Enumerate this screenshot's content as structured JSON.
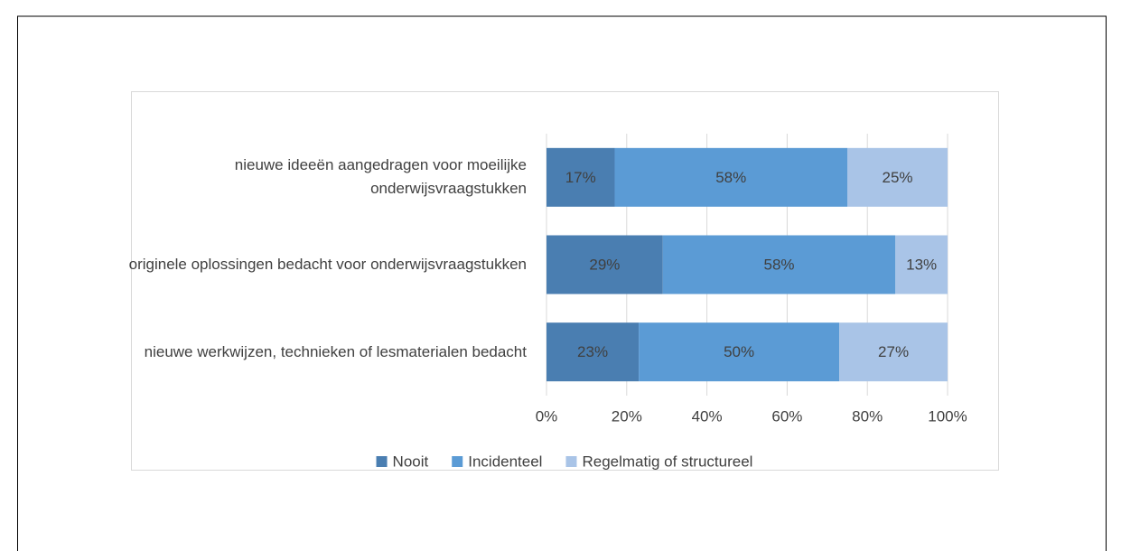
{
  "chart_data": {
    "type": "stacked_barh",
    "categories": [
      "nieuwe ideeën aangedragen voor moeilijke onderwijsvraagstukken",
      "originele oplossingen bedacht voor onderwijsvraagstukken",
      "nieuwe werkwijzen, technieken of lesmaterialen bedacht"
    ],
    "series": [
      {
        "name": "Nooit",
        "color": "#4a7eb1",
        "values": [
          17,
          29,
          23
        ],
        "value_labels": [
          "17%",
          "29%",
          "23%"
        ]
      },
      {
        "name": "Incidenteel",
        "color": "#5b9bd5",
        "values": [
          58,
          58,
          50
        ],
        "value_labels": [
          "58%",
          "58%",
          "50%"
        ]
      },
      {
        "name": "Regelmatig of structureel",
        "color": "#a9c4e7",
        "values": [
          25,
          13,
          27
        ],
        "value_labels": [
          "25%",
          "13%",
          "27%"
        ]
      }
    ],
    "xlim": [
      0,
      100
    ],
    "xticks": [
      {
        "value": 0,
        "label": "0%"
      },
      {
        "value": 20,
        "label": "20%"
      },
      {
        "value": 40,
        "label": "40%"
      },
      {
        "value": 60,
        "label": "60%"
      },
      {
        "value": 80,
        "label": "80%"
      },
      {
        "value": 100,
        "label": "100%"
      }
    ],
    "grid": true,
    "legend": "bottom"
  }
}
